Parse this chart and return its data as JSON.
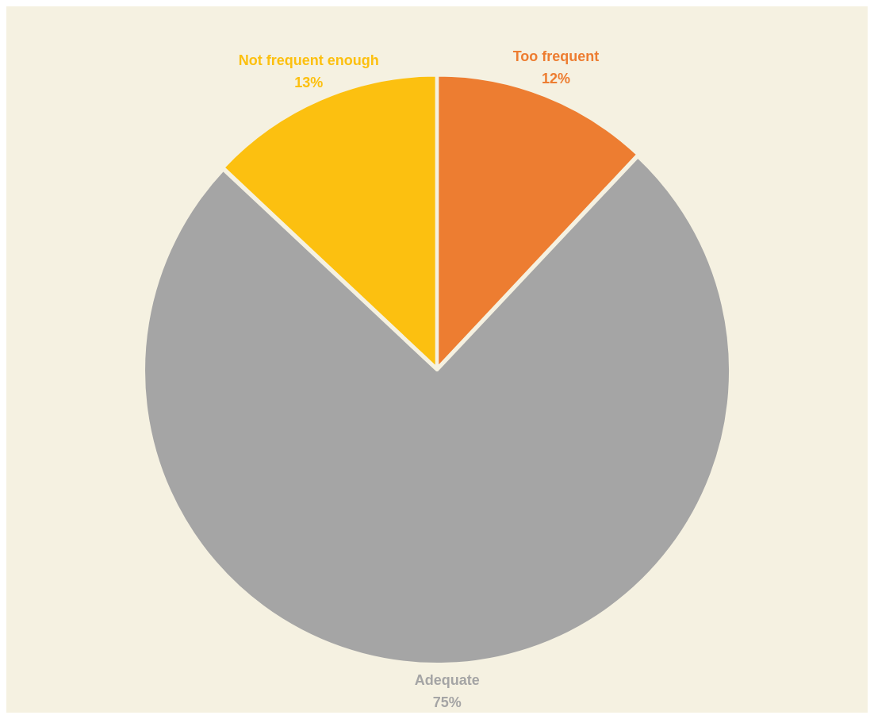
{
  "chart_data": {
    "type": "pie",
    "categories": [
      "Too frequent",
      "Adequate",
      "Not frequent enough"
    ],
    "values": [
      12,
      75,
      13
    ],
    "colors": [
      "#ed7d31",
      "#a5a5a5",
      "#fcc010"
    ],
    "legend": false,
    "value_labels": [
      "12%",
      "75%",
      "13%"
    ]
  }
}
